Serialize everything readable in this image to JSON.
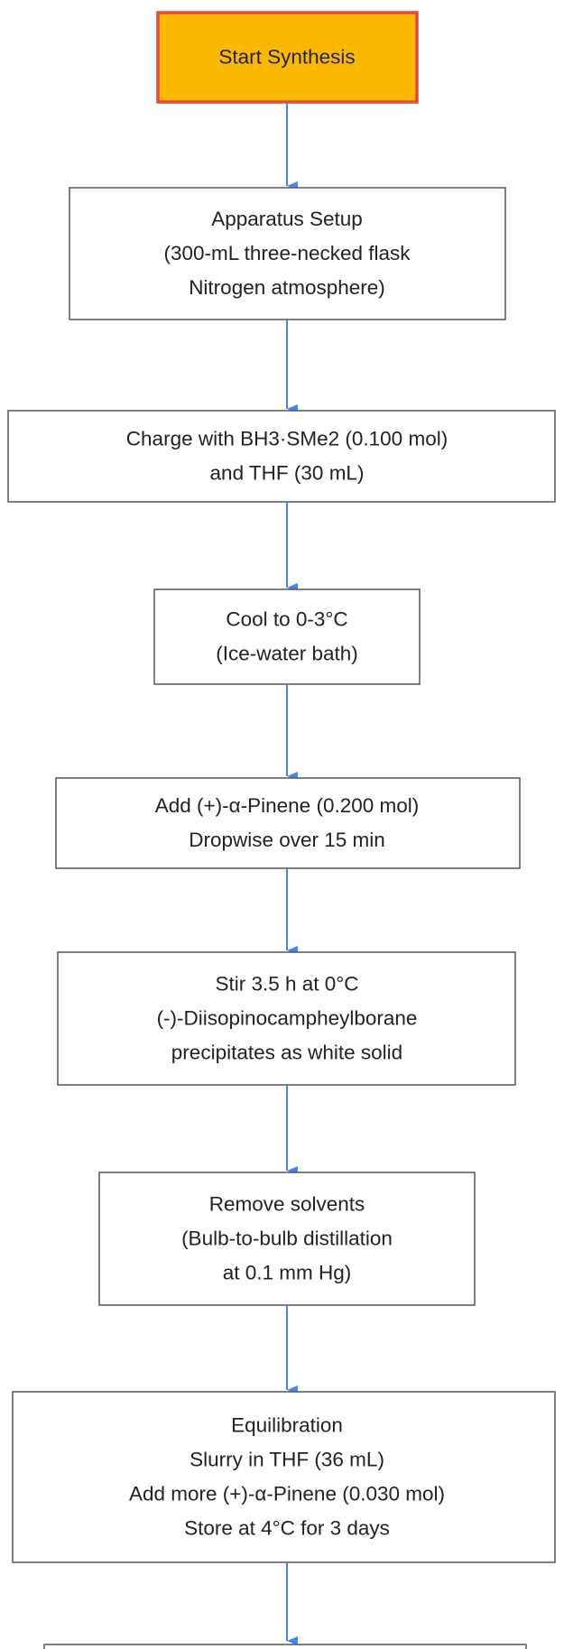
{
  "nodes": [
    {
      "lines": [
        "Start Synthesis"
      ]
    },
    {
      "lines": [
        "Apparatus Setup",
        "(300-mL three-necked flask",
        "Nitrogen atmosphere)"
      ]
    },
    {
      "lines": [
        "Charge with BH3·SMe2 (0.100 mol)",
        "and THF (30 mL)"
      ]
    },
    {
      "lines": [
        "Cool to 0-3°C",
        "(Ice-water bath)"
      ]
    },
    {
      "lines": [
        "Add (+)-α-Pinene (0.200 mol)",
        "Dropwise over 15 min"
      ]
    },
    {
      "lines": [
        "Stir 3.5 h at 0°C",
        "(-)-Diisopinocampheylborane",
        "precipitates as white solid"
      ]
    },
    {
      "lines": [
        "Remove solvents",
        "(Bulb-to-bulb distillation",
        "at 0.1 mm Hg)"
      ]
    },
    {
      "lines": [
        "Equilibration",
        "Slurry in THF (36 mL)",
        "Add more (+)-α-Pinene (0.030 mol)",
        "Store at 4°C for 3 days"
      ]
    }
  ]
}
